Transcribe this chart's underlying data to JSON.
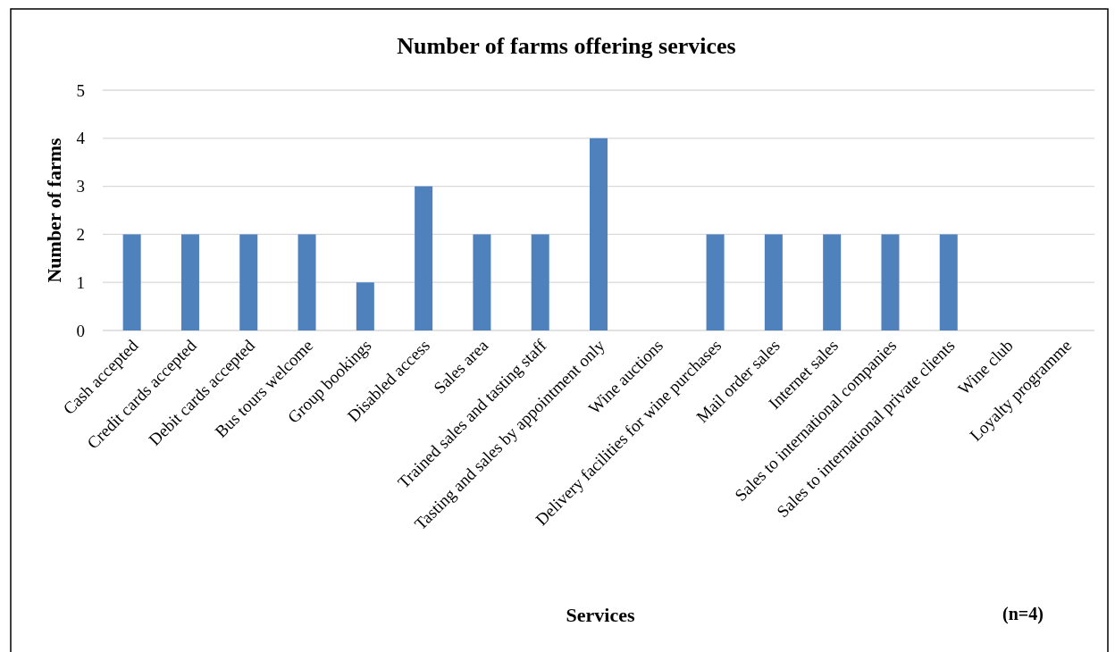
{
  "chart_data": {
    "type": "bar",
    "title": "Number of farms offering services",
    "xlabel": "Services",
    "ylabel": "Number of farms",
    "categories": [
      "Cash accepted",
      "Credit cards accepted",
      "Debit cards accepted",
      "Bus tours welcome",
      "Group bookings",
      "Disabled access",
      "Sales area",
      "Trained sales and tasting staff",
      "Tasting and sales by appointment only",
      "Wine auctions",
      "Delivery facilities for wine purchases",
      "Mail order sales",
      "Internet sales",
      "Sales to international companies",
      "Sales to international private clients",
      "Wine club",
      "Loyalty programme"
    ],
    "values": [
      2,
      2,
      2,
      2,
      1,
      3,
      2,
      2,
      4,
      0,
      2,
      2,
      2,
      2,
      2,
      0,
      0
    ],
    "color": "#4f81bd",
    "ylim": [
      0,
      5
    ],
    "yticks": [
      0,
      1,
      2,
      3,
      4,
      5
    ],
    "grid": "y",
    "annotations": [
      "(n=4)"
    ]
  }
}
